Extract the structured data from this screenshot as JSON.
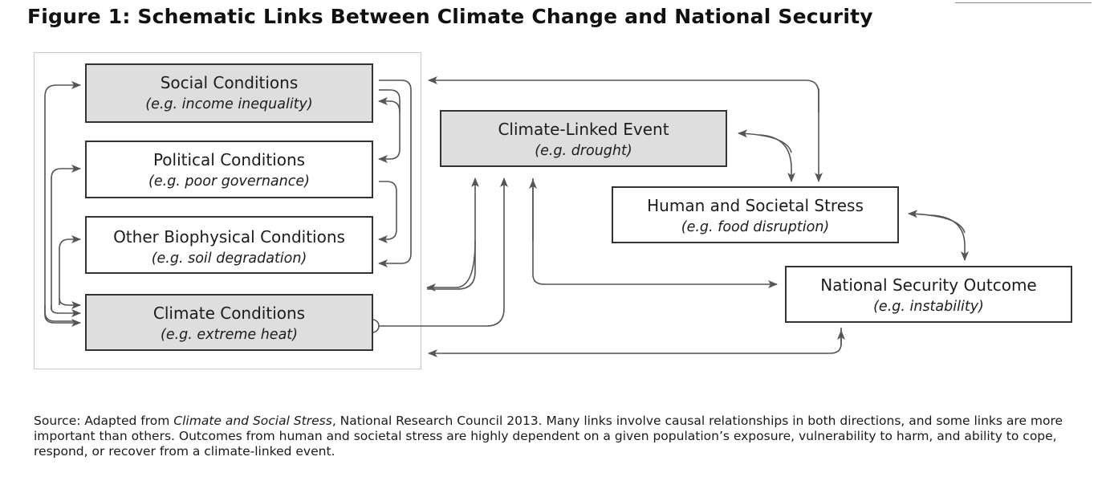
{
  "figure": {
    "title": "Figure 1: Schematic Links Between Climate Change and National Security"
  },
  "boxes": {
    "social": {
      "name": "Social Conditions",
      "example": "(e.g. income inequality)"
    },
    "political": {
      "name": "Political Conditions",
      "example": "(e.g. poor governance)"
    },
    "biophys": {
      "name": "Other Biophysical Conditions",
      "example": "(e.g. soil degradation)"
    },
    "climate": {
      "name": "Climate Conditions",
      "example": "(e.g. extreme heat)"
    },
    "event": {
      "name": "Climate-Linked Event",
      "example": "(e.g. drought)"
    },
    "stress": {
      "name": "Human and Societal Stress",
      "example": "(e.g. food disruption)"
    },
    "outcome": {
      "name": "National Security Outcome",
      "example": "(e.g. instability)"
    }
  },
  "source": {
    "prefix": "Source:  Adapted from ",
    "citation": "Climate and Social Stress",
    "rest": ", National Research Council 2013.  Many links involve causal relationships in both directions, and some links are more important than others.  Outcomes from human and societal stress are highly dependent on a given population’s exposure, vulnerability to harm, and ability to cope, respond, or recover from a climate-linked event."
  },
  "colors": {
    "box_fill_shaded": "#dedede",
    "box_fill_plain": "#ffffff",
    "border": "#333333",
    "arrow": "#555555"
  }
}
